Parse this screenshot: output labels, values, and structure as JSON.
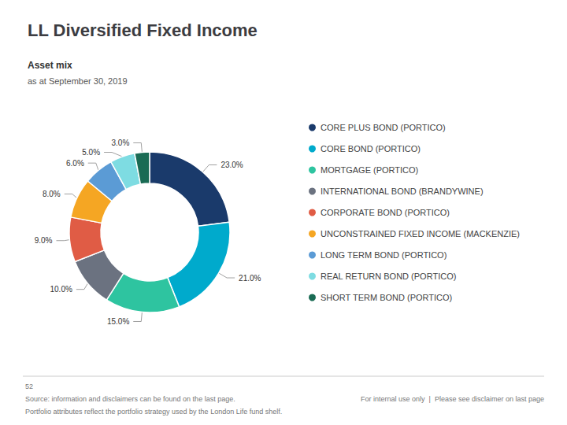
{
  "chart_data": {
    "type": "pie",
    "title": "LL Diversified Fixed Income",
    "subtitle": "Asset mix",
    "subtitle2": "as at September 30, 2019",
    "categories": [
      "CORE PLUS BOND (PORTICO)",
      "CORE BOND (PORTICO)",
      "MORTGAGE (PORTICO)",
      "INTERNATIONAL BOND (BRANDYWINE)",
      "CORPORATE BOND (PORTICO)",
      "UNCONSTRAINED FIXED INCOME (MACKENZIE)",
      "LONG TERM BOND (PORTICO)",
      "REAL RETURN BOND (PORTICO)",
      "SHORT TERM BOND (PORTICO)"
    ],
    "values": [
      23.0,
      21.0,
      15.0,
      10.0,
      9.0,
      8.0,
      6.0,
      5.0,
      3.0
    ],
    "value_labels": [
      "23.0%",
      "21.0%",
      "15.0%",
      "10.0%",
      "9.0%",
      "8.0%",
      "6.0%",
      "5.0%",
      "3.0%"
    ],
    "colors": [
      "#1a3a6b",
      "#00aacc",
      "#2ec4a0",
      "#6b7280",
      "#e05c45",
      "#f5a623",
      "#5b9bd5",
      "#7edce2",
      "#1a6b54"
    ],
    "data_labels": true,
    "legend": "right",
    "annotations": [
      "52",
      "Source: information and disclaimers can be found on the last page.",
      "Portfolio attributes reflect the portfolio strategy used by the London Life fund shelf.",
      "For internal use only  |  Please see disclaimer on last page"
    ]
  }
}
